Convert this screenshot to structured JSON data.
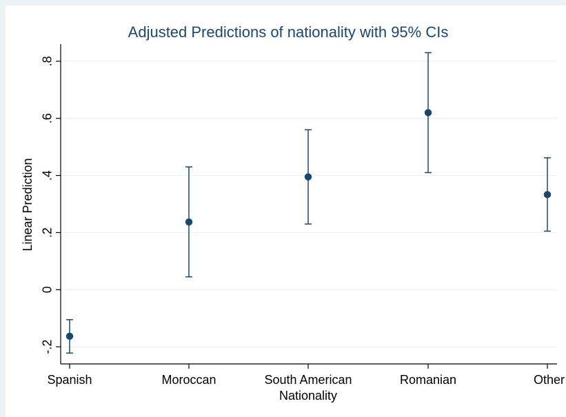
{
  "chart_data": {
    "type": "scatter",
    "title": "Adjusted Predictions of nationality with 95% CIs",
    "xlabel": "Nationality",
    "ylabel": "Linear Prediction",
    "categories": [
      "Spanish",
      "Moroccan",
      "South American",
      "Romanian",
      "Other"
    ],
    "series": [
      {
        "values": [
          -0.163,
          0.237,
          0.395,
          0.62,
          0.333
        ],
        "ci_lower": [
          -0.222,
          0.045,
          0.23,
          0.41,
          0.205
        ],
        "ci_upper": [
          -0.105,
          0.43,
          0.56,
          0.83,
          0.462
        ]
      }
    ],
    "yticks": [
      -0.2,
      0,
      0.2,
      0.4,
      0.6,
      0.8
    ],
    "ytick_labels": [
      "-.2",
      "0",
      ".2",
      ".4",
      ".6",
      ".8"
    ],
    "ylim": [
      -0.26,
      0.86
    ],
    "grid": true,
    "colors": {
      "marker": "#1a476f",
      "background": "#eaf2f3",
      "plot_background": "#ffffff"
    }
  }
}
